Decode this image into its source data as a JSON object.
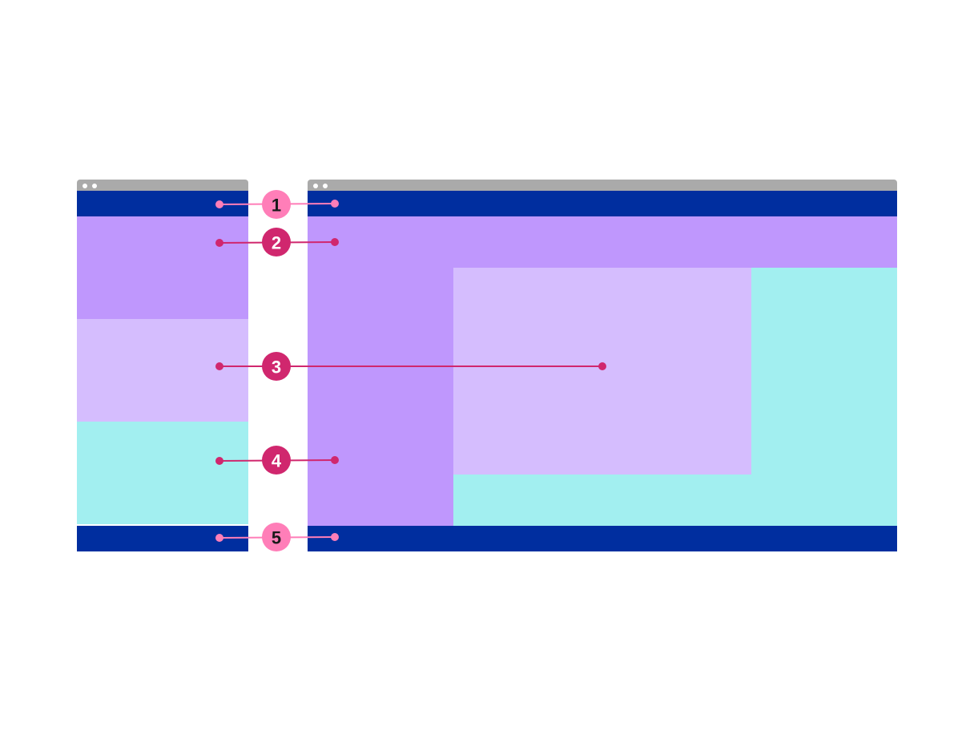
{
  "colors": {
    "chrome": "#aaaaaa",
    "header_footer": "#002e9f",
    "region_2_nav": "#bf97fd",
    "region_3_main": "#d5bdfe",
    "region_4_aside": "#a2eff0",
    "callout_pink": "#ff7eb8",
    "callout_magenta": "#d0276e"
  },
  "callouts": [
    {
      "number": "1",
      "region": "header",
      "style": "light"
    },
    {
      "number": "2",
      "region": "navigation",
      "style": "dark"
    },
    {
      "number": "3",
      "region": "main-content",
      "style": "dark"
    },
    {
      "number": "4",
      "region": "sidebar",
      "style": "dark"
    },
    {
      "number": "5",
      "region": "footer",
      "style": "light"
    }
  ]
}
